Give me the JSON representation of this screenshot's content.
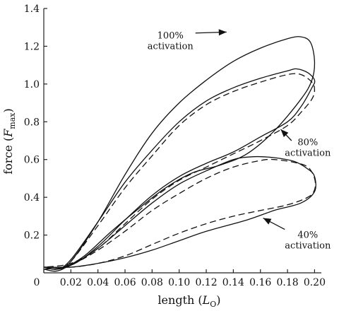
{
  "chart_data": {
    "type": "line",
    "xlabel": {
      "main": "length (",
      "italic": "L",
      "sub": "O",
      "close": ")"
    },
    "ylabel": {
      "main": "force (",
      "italic": "F",
      "sub": "max",
      "close": ")"
    },
    "xlim": [
      0,
      0.205
    ],
    "ylim": [
      0,
      1.4
    ],
    "xticks": [
      0,
      0.02,
      0.04,
      0.06,
      0.08,
      0.1,
      0.12,
      0.14,
      0.16,
      0.18,
      0.2
    ],
    "xtick_labels": [
      "0",
      "0.02",
      "0.04",
      "0.06",
      "0.08",
      "0.10",
      "0.12",
      "0.14",
      "0.16",
      "0.18",
      "0.20"
    ],
    "yticks": [
      0.2,
      0.4,
      0.6,
      0.8,
      1.0,
      1.2,
      1.4
    ],
    "ytick_labels": [
      "0.2",
      "0.4",
      "0.6",
      "0.8",
      "1.0",
      "1.2",
      "1.4"
    ],
    "grid": false,
    "series": [
      {
        "style": "solid",
        "points": [
          [
            0.0,
            0.02
          ],
          [
            0.01,
            0.01
          ],
          [
            0.02,
            0.06
          ],
          [
            0.04,
            0.27
          ],
          [
            0.06,
            0.52
          ],
          [
            0.08,
            0.74
          ],
          [
            0.1,
            0.9
          ],
          [
            0.12,
            1.02
          ],
          [
            0.14,
            1.12
          ],
          [
            0.16,
            1.19
          ],
          [
            0.18,
            1.24
          ],
          [
            0.19,
            1.25
          ],
          [
            0.197,
            1.22
          ],
          [
            0.2,
            1.12
          ],
          [
            0.198,
            1.02
          ],
          [
            0.19,
            0.92
          ],
          [
            0.17,
            0.75
          ],
          [
            0.15,
            0.63
          ],
          [
            0.13,
            0.57
          ],
          [
            0.11,
            0.53
          ],
          [
            0.09,
            0.45
          ],
          [
            0.07,
            0.34
          ],
          [
            0.05,
            0.22
          ],
          [
            0.03,
            0.09
          ],
          [
            0.015,
            0.03
          ],
          [
            0.0,
            0.02
          ]
        ]
      },
      {
        "style": "solid",
        "points": [
          [
            0.0,
            0.03
          ],
          [
            0.01,
            0.02
          ],
          [
            0.02,
            0.07
          ],
          [
            0.04,
            0.27
          ],
          [
            0.06,
            0.48
          ],
          [
            0.08,
            0.65
          ],
          [
            0.1,
            0.8
          ],
          [
            0.12,
            0.91
          ],
          [
            0.14,
            0.98
          ],
          [
            0.16,
            1.03
          ],
          [
            0.18,
            1.07
          ],
          [
            0.187,
            1.08
          ],
          [
            0.195,
            1.06
          ],
          [
            0.2,
            1.02
          ],
          [
            0.198,
            0.98
          ],
          [
            0.19,
            0.88
          ],
          [
            0.18,
            0.8
          ],
          [
            0.16,
            0.72
          ],
          [
            0.14,
            0.64
          ],
          [
            0.12,
            0.58
          ],
          [
            0.1,
            0.51
          ],
          [
            0.08,
            0.41
          ],
          [
            0.06,
            0.28
          ],
          [
            0.04,
            0.14
          ],
          [
            0.02,
            0.04
          ],
          [
            0.0,
            0.03
          ]
        ]
      },
      {
        "style": "dashed",
        "points": [
          [
            0.0,
            0.03
          ],
          [
            0.01,
            0.02
          ],
          [
            0.02,
            0.06
          ],
          [
            0.04,
            0.25
          ],
          [
            0.06,
            0.45
          ],
          [
            0.08,
            0.62
          ],
          [
            0.1,
            0.78
          ],
          [
            0.12,
            0.89
          ],
          [
            0.14,
            0.96
          ],
          [
            0.16,
            1.01
          ],
          [
            0.18,
            1.05
          ],
          [
            0.19,
            1.05
          ],
          [
            0.198,
            1.01
          ],
          [
            0.2,
            0.97
          ],
          [
            0.198,
            0.92
          ],
          [
            0.19,
            0.85
          ],
          [
            0.18,
            0.78
          ],
          [
            0.16,
            0.7
          ],
          [
            0.14,
            0.63
          ],
          [
            0.12,
            0.56
          ],
          [
            0.1,
            0.49
          ],
          [
            0.08,
            0.39
          ],
          [
            0.06,
            0.26
          ],
          [
            0.04,
            0.13
          ],
          [
            0.02,
            0.05
          ],
          [
            0.0,
            0.03
          ]
        ]
      },
      {
        "style": "solid",
        "points": [
          [
            0.0,
            0.03
          ],
          [
            0.01,
            0.02
          ],
          [
            0.02,
            0.04
          ],
          [
            0.04,
            0.13
          ],
          [
            0.06,
            0.25
          ],
          [
            0.08,
            0.37
          ],
          [
            0.1,
            0.47
          ],
          [
            0.12,
            0.54
          ],
          [
            0.14,
            0.6
          ],
          [
            0.155,
            0.615
          ],
          [
            0.17,
            0.61
          ],
          [
            0.185,
            0.59
          ],
          [
            0.195,
            0.55
          ],
          [
            0.2,
            0.51
          ],
          [
            0.2,
            0.43
          ],
          [
            0.19,
            0.37
          ],
          [
            0.17,
            0.33
          ],
          [
            0.15,
            0.28
          ],
          [
            0.12,
            0.22
          ],
          [
            0.1,
            0.17
          ],
          [
            0.08,
            0.12
          ],
          [
            0.06,
            0.08
          ],
          [
            0.04,
            0.05
          ],
          [
            0.02,
            0.03
          ],
          [
            0.0,
            0.03
          ]
        ]
      },
      {
        "style": "dashed",
        "points": [
          [
            0.0,
            0.03
          ],
          [
            0.01,
            0.02
          ],
          [
            0.02,
            0.04
          ],
          [
            0.04,
            0.12
          ],
          [
            0.06,
            0.22
          ],
          [
            0.08,
            0.33
          ],
          [
            0.1,
            0.42
          ],
          [
            0.12,
            0.5
          ],
          [
            0.14,
            0.56
          ],
          [
            0.16,
            0.595
          ],
          [
            0.17,
            0.6
          ],
          [
            0.185,
            0.585
          ],
          [
            0.195,
            0.56
          ],
          [
            0.2,
            0.5
          ],
          [
            0.2,
            0.44
          ],
          [
            0.195,
            0.4
          ],
          [
            0.18,
            0.36
          ],
          [
            0.16,
            0.33
          ],
          [
            0.14,
            0.3
          ],
          [
            0.12,
            0.26
          ],
          [
            0.1,
            0.21
          ],
          [
            0.08,
            0.15
          ],
          [
            0.06,
            0.09
          ],
          [
            0.04,
            0.05
          ],
          [
            0.02,
            0.03
          ],
          [
            0.0,
            0.03
          ]
        ]
      }
    ],
    "annotations": [
      {
        "text": [
          "100%",
          "activation"
        ],
        "text_at": [
          0.0935,
          1.24
        ],
        "arrow_from": [
          0.112,
          1.27
        ],
        "arrow_to": [
          0.135,
          1.275
        ]
      },
      {
        "text": [
          "80%",
          "activation"
        ],
        "text_at": [
          0.195,
          0.675
        ],
        "arrow_from": [
          0.183,
          0.7
        ],
        "arrow_to": [
          0.175,
          0.76
        ]
      },
      {
        "text": [
          "40%",
          "activation"
        ],
        "text_at": [
          0.195,
          0.185
        ],
        "arrow_from": [
          0.178,
          0.23
        ],
        "arrow_to": [
          0.162,
          0.29
        ]
      }
    ]
  }
}
